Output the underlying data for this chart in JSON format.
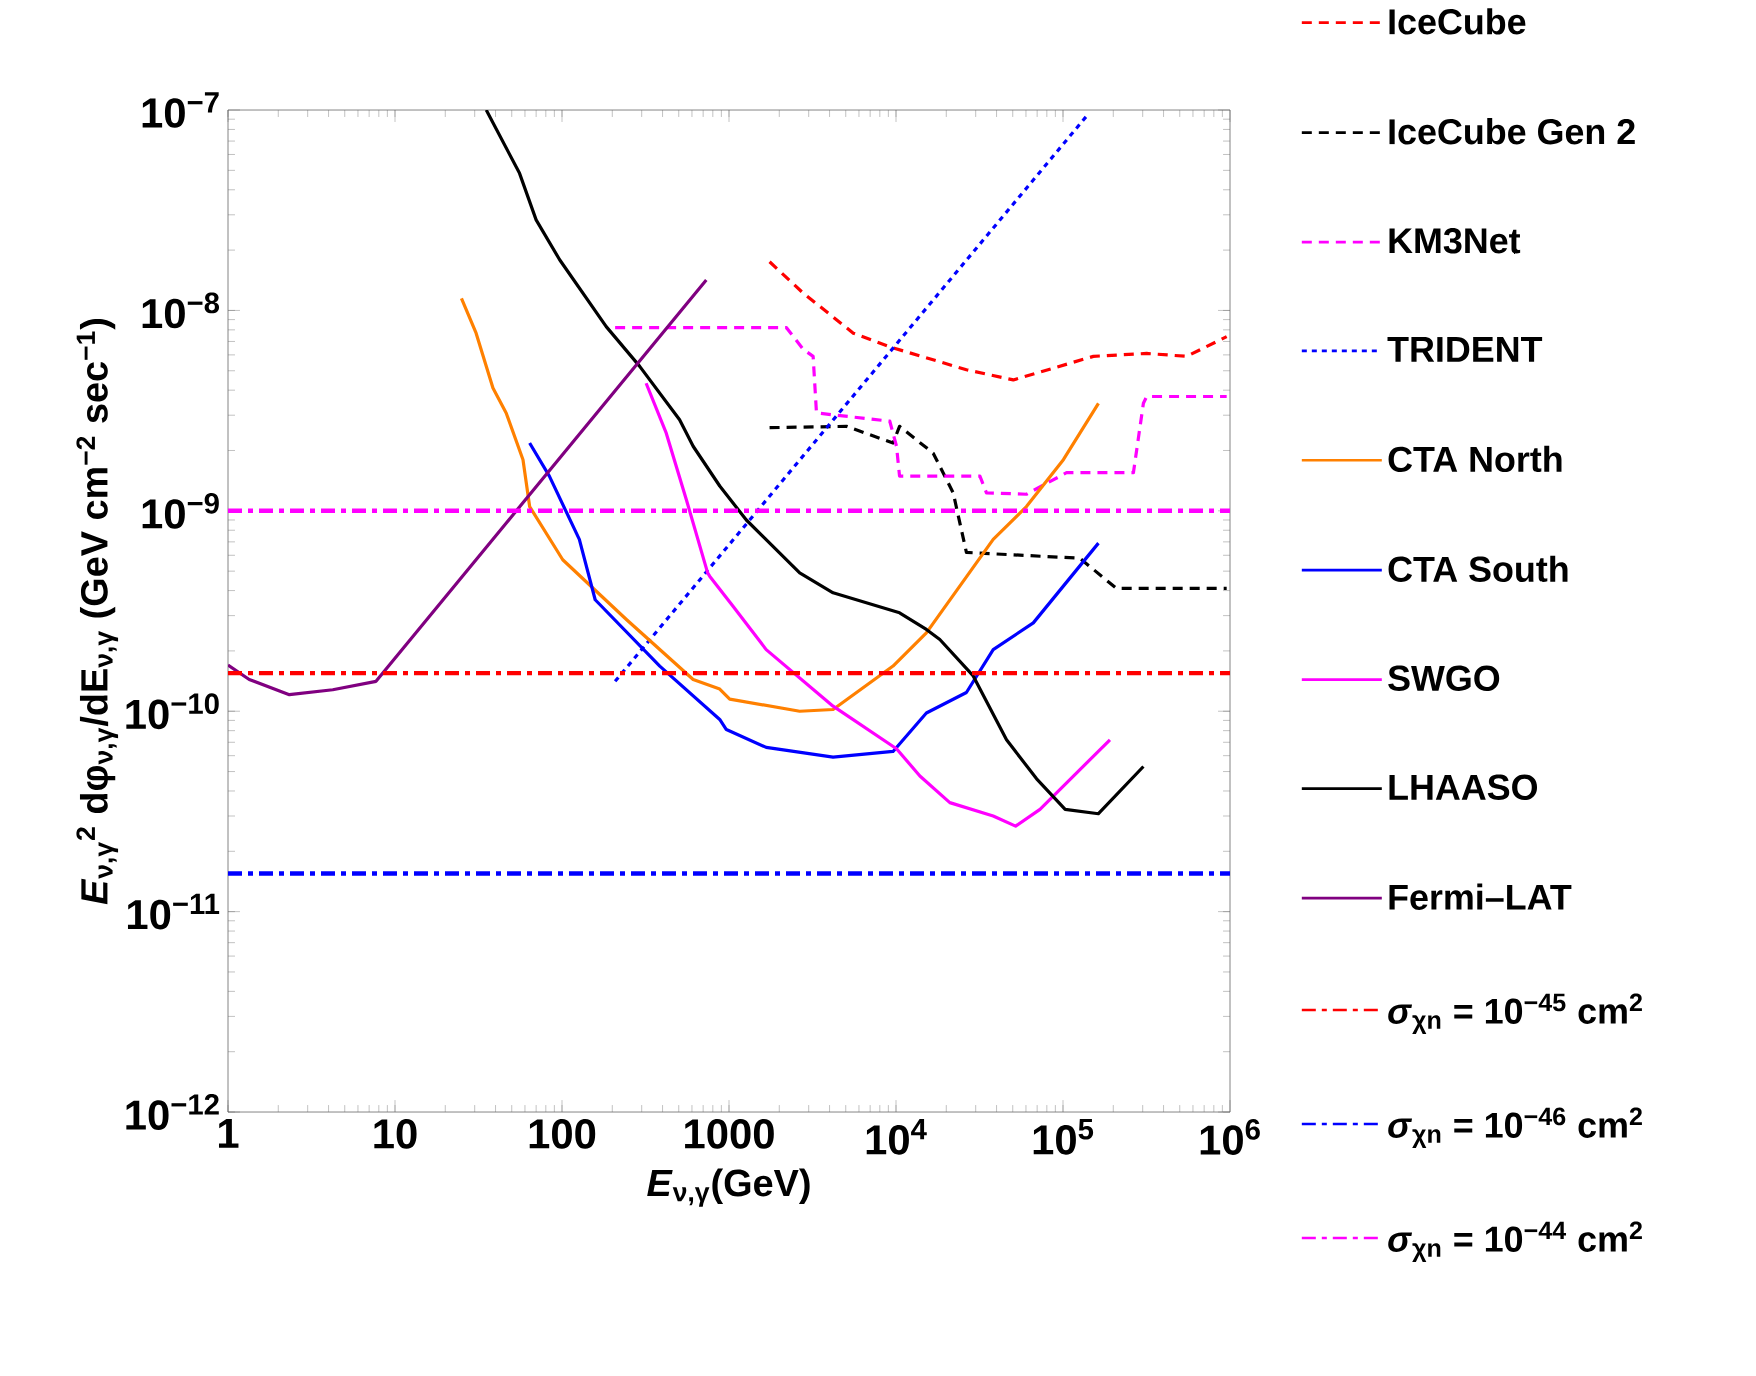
{
  "chart_data": {
    "type": "line",
    "xlabel": "*E*$_{ν,γ}$(GeV)",
    "ylabel": "*E*$_{ν,γ}$$^{2}$ dφ$_{ν,γ}$/dE$_{ν,γ}$ (GeV cm$^{−2}$ sec$^{−1}$)",
    "log": "xy",
    "xlim": [
      1,
      1000000
    ],
    "ylim": [
      1e-12,
      1e-07
    ],
    "xticks": [
      1,
      10,
      100,
      1000,
      {
        "value": 10000,
        "label": "10$^{4}$"
      },
      {
        "value": 100000,
        "label": "10$^{5}$"
      },
      {
        "value": 1000000,
        "label": "10$^{6}$"
      }
    ],
    "yticks": [
      {
        "value": 1e-12,
        "label": "10$^{−12}$"
      },
      {
        "value": 1e-11,
        "label": "10$^{−11}$"
      },
      {
        "value": 1e-10,
        "label": "10$^{−10}$"
      },
      {
        "value": 1e-09,
        "label": "10$^{−9}$"
      },
      {
        "value": 1e-08,
        "label": "10$^{−8}$"
      },
      {
        "value": 1e-07,
        "label": "10$^{−7}$"
      }
    ],
    "legend": "right",
    "series": [
      {
        "name": "IceCube",
        "color": "#ff0000",
        "line_style": "dashed",
        "x": [
          1750,
          2780,
          5550,
          9600,
          26400,
          50400,
          152000,
          317000,
          550000,
          955000
        ],
        "values": [
          1.75e-08,
          1.22e-08,
          7.7e-09,
          6.5e-09,
          5.06e-09,
          4.5e-09,
          5.9e-09,
          6.1e-09,
          5.9e-09,
          7.4e-09
        ]
      },
      {
        "name": "IceCube Gen 2",
        "color": "#000000",
        "line_style": "dashed",
        "x": [
          1750,
          5060,
          9600,
          10500,
          16700,
          22000,
          26400,
          126000,
          209000,
          955000
        ],
        "values": [
          2.6e-09,
          2.64e-09,
          2.18e-09,
          2.64e-09,
          1.94e-09,
          1.23e-09,
          6.2e-10,
          5.8e-10,
          4.1e-10,
          4.1e-10
        ]
      },
      {
        "name": "KM3Net",
        "color": "#ff00ff",
        "line_style": "dashed",
        "x": [
          208,
          2210,
          2780,
          3190,
          3340,
          9180,
          10070,
          10500,
          31800,
          34800,
          60400,
          105000,
          264000,
          303000,
          317000,
          955000
        ],
        "values": [
          8.2e-09,
          8.2e-09,
          6.4e-09,
          5.9e-09,
          3.08e-09,
          2.8e-09,
          2.1e-09,
          1.49e-09,
          1.49e-09,
          1.23e-09,
          1.21e-09,
          1.55e-09,
          1.55e-09,
          3.44e-09,
          3.72e-09,
          3.72e-09
        ]
      },
      {
        "name": "TRIDENT",
        "color": "#0000ff",
        "line_style": "dotted",
        "x": [
          208,
          141000
        ],
        "values": [
          1.41e-10,
          9.5e-08
        ]
      },
      {
        "name": "CTA North",
        "color": "#ff8000",
        "line_style": "solid",
        "x": [
          25,
          30.6,
          38.6,
          46.3,
          58.4,
          64,
          101,
          243,
          610,
          880,
          1010,
          2650,
          4200,
          9600,
          15200,
          38200,
          60400,
          100500,
          163000
        ],
        "values": [
          1.15e-08,
          7.7e-09,
          4.1e-09,
          3.08e-09,
          1.8e-09,
          1.05e-09,
          5.7e-10,
          2.87e-10,
          1.44e-10,
          1.29e-10,
          1.15e-10,
          1e-10,
          1.02e-10,
          1.68e-10,
          2.46e-10,
          7.2e-10,
          1.05e-09,
          1.8e-09,
          3.44e-09
        ]
      },
      {
        "name": "CTA South",
        "color": "#0000ff",
        "line_style": "solid",
        "x": [
          64,
          84,
          127,
          158,
          385,
          880,
          964,
          1670,
          4200,
          9600,
          15200,
          26400,
          38200,
          66400,
          163000
        ],
        "values": [
          2.18e-09,
          1.49e-09,
          7.2e-10,
          3.6e-10,
          1.68e-10,
          9.1e-11,
          8.1e-11,
          6.6e-11,
          5.9e-11,
          6.3e-11,
          9.8e-11,
          1.24e-10,
          2.03e-10,
          2.76e-10,
          6.9e-10
        ]
      },
      {
        "name": "SWGO",
        "color": "#ff00ff",
        "line_style": "solid",
        "x": [
          319,
          421,
          555,
          745,
          766,
          1057,
          1670,
          4200,
          10070,
          13900,
          21000,
          38200,
          52000,
          72800,
          191000
        ],
        "values": [
          4.33e-09,
          2.44e-09,
          1.14e-09,
          4.9e-10,
          4.72e-10,
          3.34e-10,
          2.03e-10,
          1.06e-10,
          6.5e-11,
          4.75e-11,
          3.5e-11,
          3e-11,
          2.67e-11,
          3.24e-11,
          7.2e-11
        ]
      },
      {
        "name": "LHAASO",
        "color": "#000000",
        "line_style": "solid",
        "x": [
          35.2,
          55.7,
          70,
          96.8,
          184,
          292,
          506,
          610,
          880,
          1270,
          2650,
          4200,
          10500,
          15200,
          18300,
          29000,
          45900,
          69500,
          103000,
          163000,
          303000
        ],
        "values": [
          1e-07,
          4.83e-08,
          2.83e-08,
          1.79e-08,
          8.3e-09,
          5.26e-09,
          2.85e-09,
          2.1e-09,
          1.33e-09,
          9e-10,
          4.9e-10,
          3.9e-10,
          3.1e-10,
          2.56e-10,
          2.28e-10,
          1.5e-10,
          7.2e-11,
          4.6e-11,
          3.24e-11,
          3.08e-11,
          5.3e-11
        ]
      },
      {
        "name": "Fermi–LAT",
        "color": "#800080",
        "line_style": "solid",
        "x": [
          1,
          1.34,
          2.33,
          4.24,
          7.7,
          731
        ],
        "values": [
          1.7e-10,
          1.44e-10,
          1.21e-10,
          1.28e-10,
          1.41e-10,
          1.42e-08
        ]
      },
      {
        "name": "*σ*$_{χn}$ = 10$^{−45}$ cm$^{2}$",
        "color": "#ff0000",
        "line_style": "dashdot",
        "x": [
          1,
          1000000
        ],
        "values": [
          1.55e-10,
          1.55e-10
        ]
      },
      {
        "name": "*σ*$_{χn}$ = 10$^{−46}$ cm$^{2}$",
        "color": "#0000ff",
        "line_style": "dashdot",
        "x": [
          1,
          1000000
        ],
        "values": [
          1.55e-11,
          1.55e-11
        ]
      },
      {
        "name": "*σ*$_{χn}$ = 10$^{−44}$ cm$^{2}$",
        "color": "#ff00ff",
        "line_style": "dashdot",
        "x": [
          1,
          1000000
        ],
        "values": [
          1e-09,
          1e-09
        ]
      }
    ]
  }
}
